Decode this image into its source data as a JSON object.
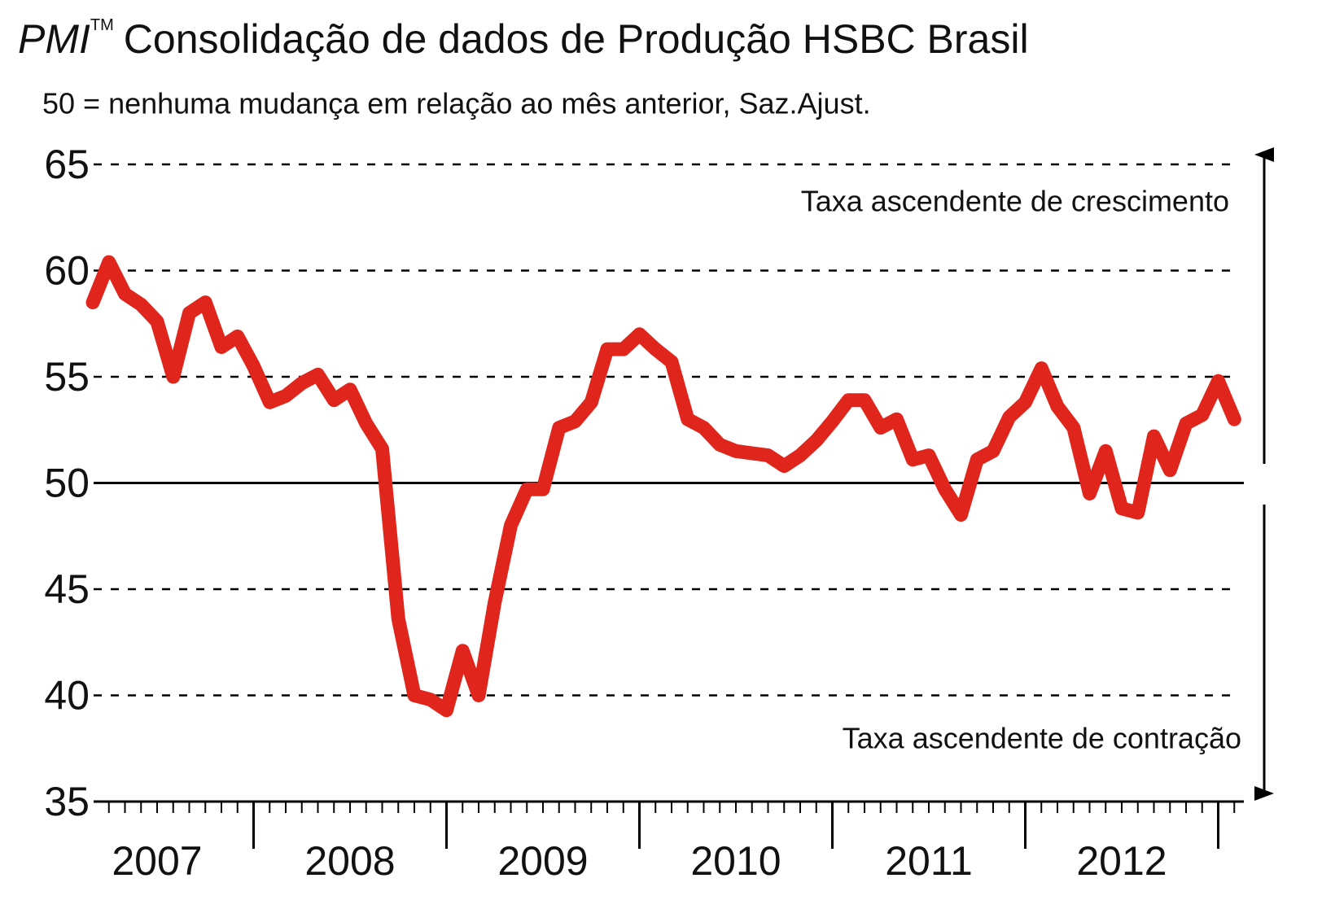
{
  "chart_data": {
    "type": "line",
    "title_prefix": "PMI",
    "title_mark": "TM",
    "title": "Consolidação de dados de Produção HSBC Brasil",
    "subtitle": "50 = nenhuma mudança em relação ao mês anterior, Saz.Ajust.",
    "annotations": [
      "Taxa ascendente de crescimento",
      "Taxa ascendente de contração"
    ],
    "x_labels": [
      "2007",
      "2008",
      "2009",
      "2010",
      "2011",
      "2012"
    ],
    "values": [
      58.5,
      60.4,
      58.9,
      58.4,
      57.6,
      55.0,
      58.0,
      58.5,
      56.4,
      56.9,
      55.5,
      53.8,
      54.1,
      54.7,
      55.1,
      53.9,
      54.4,
      52.8,
      51.6,
      43.6,
      40.0,
      39.8,
      39.3,
      42.1,
      40.0,
      44.4,
      48.0,
      49.7,
      49.7,
      52.6,
      52.9,
      53.8,
      56.3,
      56.3,
      57.0,
      56.3,
      55.7,
      53.0,
      52.6,
      51.8,
      51.5,
      51.4,
      51.3,
      50.8,
      51.3,
      52.0,
      52.9,
      53.9,
      53.9,
      52.6,
      53.0,
      51.1,
      51.3,
      49.7,
      48.5,
      51.1,
      51.5,
      53.1,
      53.8,
      55.4,
      53.6,
      52.6,
      49.5,
      51.5,
      48.8,
      48.6,
      52.2,
      50.6,
      52.8,
      53.2,
      54.8,
      53.0
    ],
    "color": "#e0261c",
    "ylim": [
      35,
      65
    ],
    "yticks": [
      35,
      40,
      45,
      50,
      55,
      60,
      65
    ],
    "grid": true,
    "reference_line": 50
  }
}
